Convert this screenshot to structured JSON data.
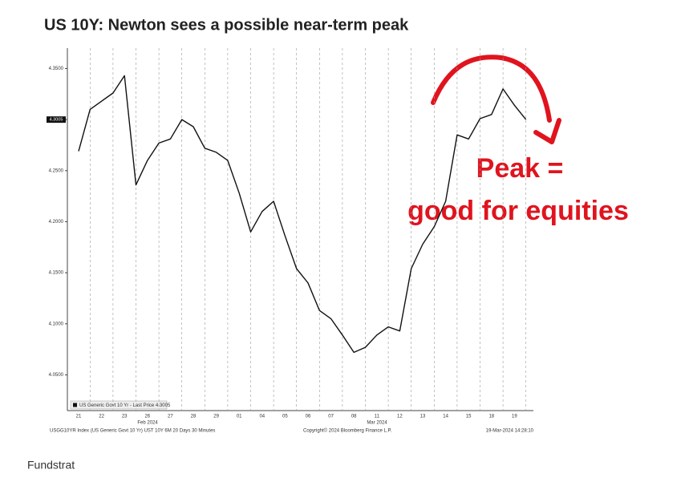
{
  "page": {
    "title": "US 10Y: Newton sees a possible near-term peak",
    "caption": "Fundstrat"
  },
  "chart_data": {
    "type": "line",
    "categories": [
      "21",
      null,
      "22",
      null,
      "23",
      null,
      "26",
      null,
      "27",
      null,
      "28",
      null,
      "29",
      null,
      "01",
      null,
      "04",
      null,
      "05",
      null,
      "06",
      null,
      "07",
      null,
      "08",
      null,
      "11",
      null,
      "12",
      null,
      "13",
      null,
      "14",
      null,
      "15",
      null,
      "18",
      null,
      "19",
      null
    ],
    "x_groups": [
      "Feb 2024",
      "Mar 2024"
    ],
    "series": [
      {
        "name": "US Generic Govt 10 Yr - Last Price 4.3005",
        "color": "#111111",
        "values": [
          4.269,
          4.31,
          4.318,
          4.326,
          4.343,
          4.236,
          4.26,
          4.277,
          4.281,
          4.3,
          4.293,
          4.272,
          4.268,
          4.26,
          4.228,
          4.19,
          4.21,
          4.22,
          4.186,
          4.154,
          4.14,
          4.113,
          4.105,
          4.089,
          4.072,
          4.077,
          4.089,
          4.097,
          4.093,
          4.154,
          4.178,
          4.195,
          4.22,
          4.285,
          4.281,
          4.301,
          4.305,
          4.33,
          4.314,
          4.3
        ]
      }
    ],
    "last_price_label": "4.3005",
    "ylim": [
      4.015,
      4.37
    ],
    "yticks": [
      {
        "value": 4.05,
        "label": "4.0500"
      },
      {
        "value": 4.1,
        "label": "4.1000"
      },
      {
        "value": 4.15,
        "label": "4.1500"
      },
      {
        "value": 4.2,
        "label": "4.2000"
      },
      {
        "value": 4.25,
        "label": "4.2500"
      },
      {
        "value": 4.3,
        "label": "4.3000"
      },
      {
        "value": 4.35,
        "label": "4.3500"
      }
    ],
    "annotations": [
      "Peak =",
      "good for equities"
    ],
    "footer": [
      "USGG10YR Index (US Generic Govt 10 Yr) UST 10Y 6M 20 Days 30 Minutes",
      "Copyright© 2024 Bloomberg Finance L.P.",
      "19-Mar-2024 14:28:10"
    ]
  }
}
